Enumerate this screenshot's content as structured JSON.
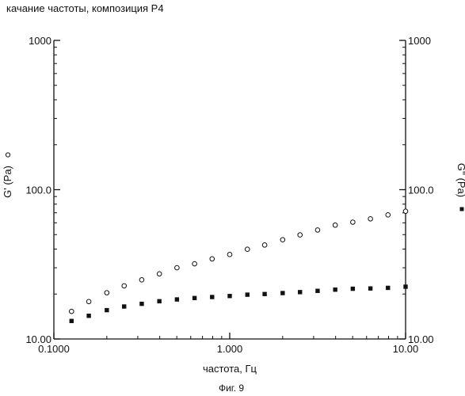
{
  "chart_data": {
    "type": "scatter",
    "title": "качание частоты, композиция Р4",
    "xlabel": "частота, Гц",
    "ylabel_left": "G' (Pa)",
    "ylabel_right": "G'' (Pa)",
    "caption": "Фиг. 9",
    "x_scale": "log",
    "y_scale": "log",
    "xlim": [
      0.1,
      10
    ],
    "ylim": [
      10,
      1000
    ],
    "x_ticks": [
      {
        "value": 0.1,
        "label": "0.1000"
      },
      {
        "value": 1,
        "label": "1.000"
      },
      {
        "value": 10,
        "label": "10.00"
      }
    ],
    "y_ticks": [
      {
        "value": 10,
        "label": "10.00"
      },
      {
        "value": 100,
        "label": "100.0"
      },
      {
        "value": 1000,
        "label": "1000"
      }
    ],
    "grid": false,
    "series": [
      {
        "name": "G' (Pa)",
        "marker": "open-circle",
        "axis": "left",
        "points": [
          [
            0.126,
            15.3
          ],
          [
            0.158,
            17.8
          ],
          [
            0.2,
            20.4
          ],
          [
            0.251,
            22.7
          ],
          [
            0.316,
            24.9
          ],
          [
            0.398,
            27.3
          ],
          [
            0.501,
            30.0
          ],
          [
            0.631,
            31.9
          ],
          [
            0.794,
            34.4
          ],
          [
            1.0,
            36.8
          ],
          [
            1.26,
            39.9
          ],
          [
            1.58,
            42.6
          ],
          [
            2.0,
            46.2
          ],
          [
            2.51,
            49.8
          ],
          [
            3.16,
            53.7
          ],
          [
            3.98,
            57.9
          ],
          [
            5.01,
            60.6
          ],
          [
            6.31,
            63.8
          ],
          [
            7.94,
            67.8
          ],
          [
            10.0,
            71.7
          ]
        ]
      },
      {
        "name": "G'' (Pa)",
        "marker": "filled-square",
        "axis": "right",
        "points": [
          [
            0.126,
            13.2
          ],
          [
            0.158,
            14.3
          ],
          [
            0.2,
            15.6
          ],
          [
            0.251,
            16.5
          ],
          [
            0.316,
            17.2
          ],
          [
            0.398,
            17.9
          ],
          [
            0.501,
            18.4
          ],
          [
            0.631,
            18.8
          ],
          [
            0.794,
            19.1
          ],
          [
            1.0,
            19.4
          ],
          [
            1.26,
            19.8
          ],
          [
            1.58,
            20.0
          ],
          [
            2.0,
            20.3
          ],
          [
            2.51,
            20.6
          ],
          [
            3.16,
            21.0
          ],
          [
            3.98,
            21.4
          ],
          [
            5.01,
            21.7
          ],
          [
            6.31,
            21.8
          ],
          [
            7.94,
            22.0
          ],
          [
            10.0,
            22.4
          ]
        ]
      }
    ]
  }
}
